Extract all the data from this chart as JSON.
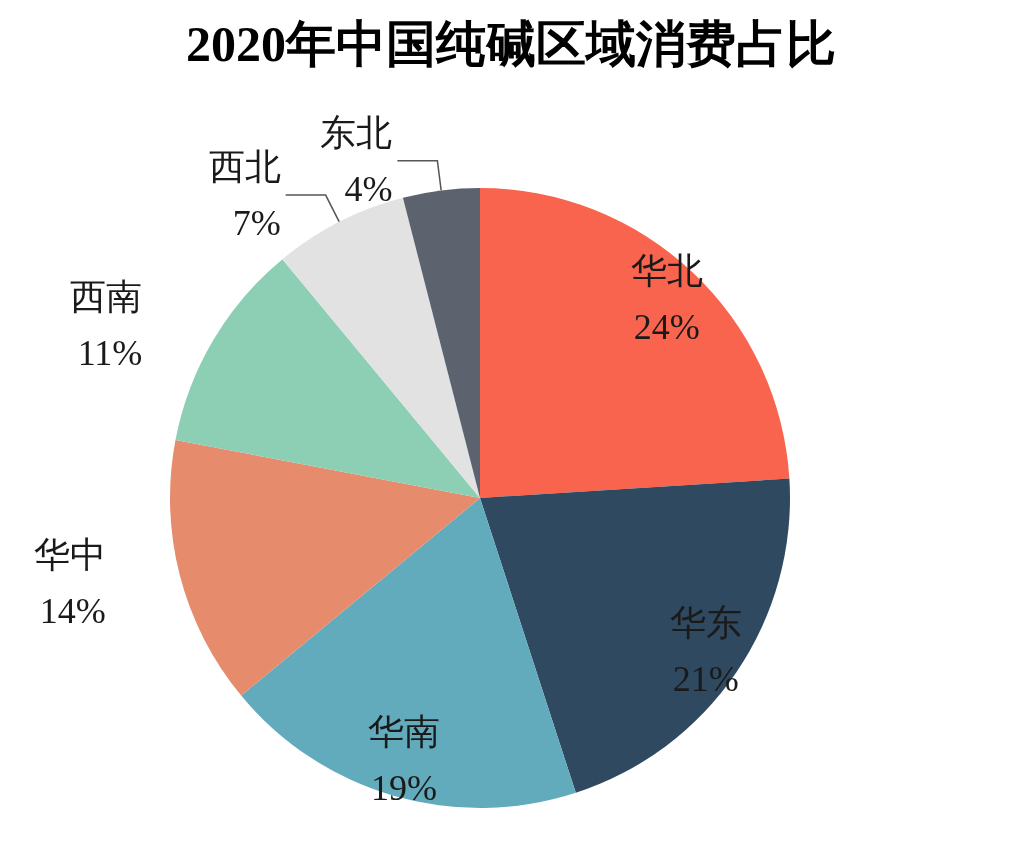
{
  "chart_data": {
    "type": "pie",
    "title": "2020年中国纯碱区域消费占比",
    "categories": [
      "华北",
      "华东",
      "华南",
      "华中",
      "西南",
      "西北",
      "东北"
    ],
    "values": [
      24,
      21,
      19,
      14,
      11,
      7,
      4
    ],
    "value_labels": [
      "24%",
      "21%",
      "19%",
      "14%",
      "11%",
      "7%",
      "4%"
    ],
    "colors": [
      "#f8644e",
      "#2f4961",
      "#62abbd",
      "#e68b6c",
      "#8ccfb5",
      "#e2e2e2",
      "#5d636e"
    ]
  }
}
